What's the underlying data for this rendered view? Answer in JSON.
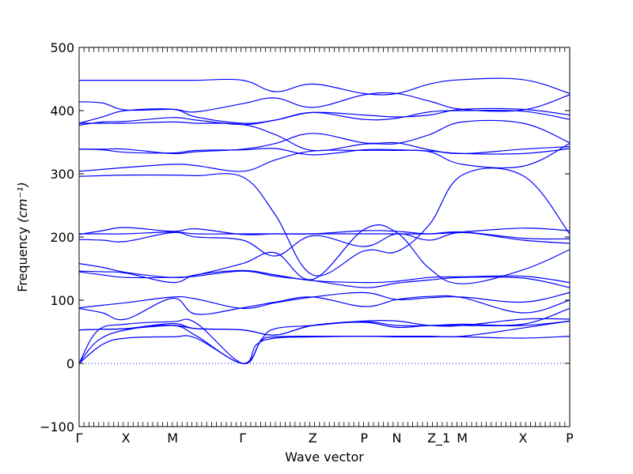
{
  "chart_data": {
    "type": "line",
    "title": "",
    "xlabel": "Wave vector",
    "ylabel": "Frequency",
    "ylabel_unit": "(cm⁻¹)",
    "ylim": [
      -100,
      500
    ],
    "yticks": [
      -100,
      0,
      100,
      200,
      300,
      400,
      500
    ],
    "xlim": [
      0,
      10.5
    ],
    "xticks": [
      {
        "label": "Γ",
        "x": 0
      },
      {
        "label": "X",
        "x": 1.0
      },
      {
        "label": "M",
        "x": 2.0
      },
      {
        "label": "Γ",
        "x": 3.5
      },
      {
        "label": "Z",
        "x": 5.0
      },
      {
        "label": "P",
        "x": 6.1
      },
      {
        "label": "N",
        "x": 6.8
      },
      {
        "label": "Z_1",
        "x": 7.7
      },
      {
        "label": "M",
        "x": 8.2
      },
      {
        "label": "X",
        "x": 9.5
      },
      {
        "label": "P",
        "x": 10.5
      }
    ],
    "zero_line": {
      "y": 0,
      "style": "dotted",
      "color": "#0000ff"
    },
    "series_color": "#0000ff",
    "series": [
      {
        "x": [
          0,
          0.5,
          1,
          2,
          2.5,
          3.5,
          4.2,
          5,
          6.1,
          6.8,
          7.5,
          8.2,
          9.5,
          10.5
        ],
        "y": [
          448,
          448,
          448,
          448,
          448,
          448,
          430,
          442,
          427,
          427,
          442,
          449,
          449,
          427
        ]
      },
      {
        "x": [
          0,
          0.5,
          1,
          2,
          2.5,
          3.5,
          4.2,
          5,
          6.1,
          6.8,
          7.5,
          8.2,
          9.5,
          10.5
        ],
        "y": [
          414,
          412,
          401,
          402,
          398,
          411,
          420,
          405,
          425,
          427,
          415,
          402,
          401,
          425
        ]
      },
      {
        "x": [
          0,
          0.5,
          1,
          2,
          2.5,
          3.5,
          4.2,
          5,
          6.1,
          6.8,
          7.5,
          8.2,
          9.5,
          10.5
        ],
        "y": [
          380,
          390,
          400,
          402,
          390,
          380,
          385,
          397,
          393,
          390,
          393,
          402,
          402,
          393
        ]
      },
      {
        "x": [
          0,
          0.5,
          1,
          2,
          2.5,
          3.5,
          4.2,
          5,
          6.1,
          6.8,
          7.5,
          8.2,
          9.5,
          10.5
        ],
        "y": [
          377,
          382,
          383,
          389,
          385,
          378,
          385,
          397,
          386,
          388,
          398,
          400,
          399,
          386
        ]
      },
      {
        "x": [
          0,
          0.5,
          1,
          2,
          2.5,
          3.5,
          4.2,
          5,
          6.1,
          6.8,
          7.5,
          8.2,
          9.5,
          10.5
        ],
        "y": [
          380,
          380,
          380,
          382,
          380,
          378,
          362,
          337,
          347,
          348,
          362,
          382,
          380,
          349
        ]
      },
      {
        "x": [
          0,
          0.5,
          1,
          2,
          2.5,
          3.5,
          4.2,
          5,
          6.1,
          6.8,
          7.5,
          8.2,
          9.5,
          10.5
        ],
        "y": [
          339,
          339,
          339,
          332,
          335,
          339,
          348,
          364,
          349,
          349,
          338,
          332,
          339,
          343
        ]
      },
      {
        "x": [
          0,
          0.5,
          1,
          2,
          2.5,
          3.5,
          4.2,
          5,
          6.1,
          6.8,
          7.5,
          8.2,
          9.5,
          10.5
        ],
        "y": [
          339,
          338,
          334,
          333,
          337,
          338,
          340,
          330,
          338,
          338,
          336,
          332,
          332,
          340
        ]
      },
      {
        "x": [
          0,
          0.5,
          1,
          2,
          2.5,
          3.5,
          4.2,
          5,
          6.1,
          6.8,
          7.5,
          8.2,
          9.5,
          10.5
        ],
        "y": [
          304,
          307,
          310,
          315,
          313,
          304,
          322,
          336,
          337,
          337,
          335,
          315,
          312,
          348
        ]
      },
      {
        "x": [
          0,
          0.5,
          1,
          2,
          2.5,
          3.5,
          4.2,
          5,
          6.1,
          6.8,
          7.5,
          8.2,
          9.5,
          10.5
        ],
        "y": [
          296,
          297,
          298,
          298,
          297,
          295,
          235,
          140,
          178,
          177,
          220,
          298,
          297,
          205
        ]
      },
      {
        "x": [
          0,
          0.5,
          1,
          2,
          2.5,
          3.5,
          4.2,
          5,
          6.1,
          6.8,
          7.5,
          8.2,
          9.5,
          10.5
        ],
        "y": [
          204,
          210,
          215,
          209,
          213,
          204,
          205,
          205,
          210,
          209,
          205,
          208,
          214,
          210
        ]
      },
      {
        "x": [
          0,
          0.5,
          1,
          2,
          2.5,
          3.5,
          4.2,
          5,
          6.1,
          6.8,
          7.5,
          8.2,
          9.5,
          10.5
        ],
        "y": [
          205,
          205,
          205,
          208,
          205,
          205,
          205,
          205,
          205,
          205,
          205,
          208,
          198,
          197
        ]
      },
      {
        "x": [
          0,
          0.5,
          1,
          2,
          2.5,
          3.5,
          4.2,
          5,
          6.1,
          6.8,
          7.5,
          8.2,
          9.5,
          10.5
        ],
        "y": [
          196,
          195,
          193,
          207,
          200,
          195,
          170,
          202,
          185,
          205,
          195,
          207,
          195,
          190
        ]
      },
      {
        "x": [
          0,
          0.5,
          1,
          2,
          2.5,
          3.5,
          4.2,
          5,
          6.1,
          6.8,
          7.5,
          8.2,
          9.5,
          10.5
        ],
        "y": [
          158,
          152,
          144,
          136,
          140,
          158,
          175,
          133,
          212,
          207,
          150,
          126,
          148,
          180
        ]
      },
      {
        "x": [
          0,
          0.5,
          1,
          2,
          2.5,
          3.5,
          4.2,
          5,
          6.1,
          6.8,
          7.5,
          8.2,
          9.5,
          10.5
        ],
        "y": [
          146,
          145,
          143,
          128,
          140,
          147,
          140,
          131,
          128,
          130,
          136,
          137,
          138,
          128
        ]
      },
      {
        "x": [
          0,
          0.5,
          1,
          2,
          2.5,
          3.5,
          4.2,
          5,
          6.1,
          6.8,
          7.5,
          8.2,
          9.5,
          10.5
        ],
        "y": [
          145,
          140,
          136,
          136,
          138,
          146,
          138,
          131,
          120,
          127,
          132,
          136,
          135,
          120
        ]
      },
      {
        "x": [
          0,
          0.5,
          1,
          2,
          2.5,
          3.5,
          4.2,
          5,
          6.1,
          6.8,
          7.5,
          8.2,
          9.5,
          10.5
        ],
        "y": [
          88,
          92,
          96,
          105,
          102,
          87,
          96,
          105,
          112,
          101,
          104,
          105,
          97,
          112
        ]
      },
      {
        "x": [
          0,
          0.5,
          1,
          2,
          2.5,
          3.5,
          4.2,
          5,
          6.1,
          6.8,
          7.5,
          8.2,
          9.5,
          10.5
        ],
        "y": [
          87,
          80,
          70,
          103,
          78,
          88,
          97,
          105,
          90,
          101,
          106,
          104,
          80,
          100
        ]
      },
      {
        "x": [
          0,
          0.5,
          1,
          2,
          2.5,
          3.5,
          4.2,
          5,
          6.1,
          6.8,
          7.5,
          8.2,
          9.5,
          10.5
        ],
        "y": [
          53,
          54,
          55,
          63,
          55,
          53,
          45,
          60,
          67,
          67,
          60,
          60,
          70,
          70
        ]
      },
      {
        "x": [
          0,
          0.5,
          1,
          2,
          2.5,
          3.5,
          4.2,
          5,
          6.1,
          6.8,
          7.5,
          8.2,
          9.5,
          10.5
        ],
        "y": [
          53,
          54,
          55,
          60,
          55,
          53,
          45,
          60,
          65,
          57,
          60,
          60,
          60,
          67
        ]
      },
      {
        "x": [
          0,
          0.4,
          1,
          2,
          2.5,
          3.5,
          3.9,
          4.2,
          5,
          6.1,
          6.8,
          7.5,
          8.2,
          9.5,
          10.5
        ],
        "y": [
          0,
          52,
          62,
          66,
          64,
          0,
          38,
          55,
          60,
          66,
          60,
          60,
          62,
          62,
          87
        ]
      },
      {
        "x": [
          0,
          0.4,
          1,
          2,
          2.5,
          3.5,
          3.9,
          4.2,
          5,
          6.1,
          6.8,
          7.5,
          8.2,
          9.5,
          10.5
        ],
        "y": [
          0,
          36,
          53,
          60,
          44,
          0,
          36,
          42,
          43,
          43,
          43,
          43,
          43,
          56,
          67
        ]
      },
      {
        "x": [
          0,
          0.5,
          1,
          2,
          2.5,
          3.5,
          3.8,
          4.2,
          5,
          6.1,
          6.8,
          7.5,
          8.2,
          9.5,
          10.5
        ],
        "y": [
          0,
          30,
          40,
          42,
          40,
          0,
          30,
          40,
          42,
          43,
          42,
          42,
          42,
          40,
          43
        ]
      }
    ]
  }
}
